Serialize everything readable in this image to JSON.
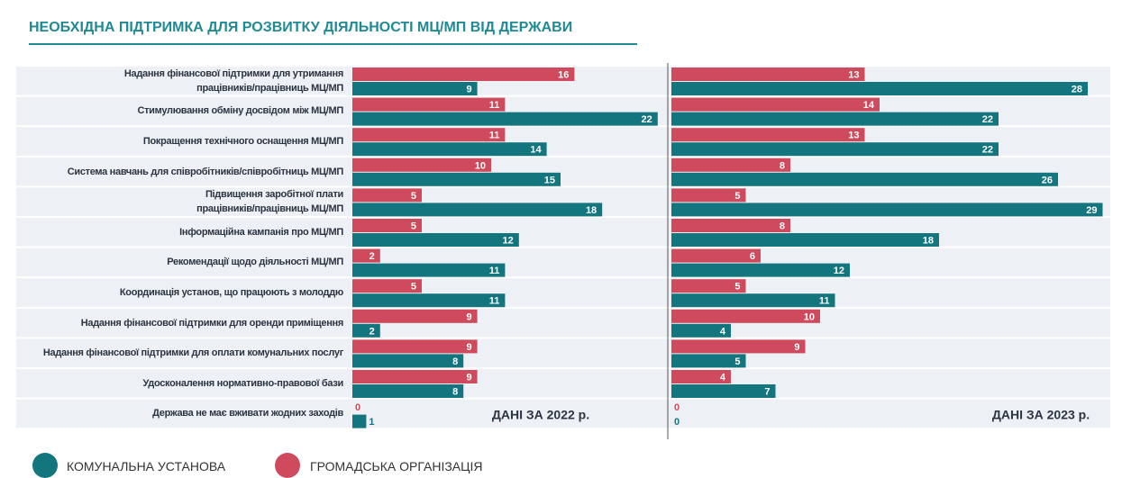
{
  "title": "НЕОБХІДНА ПІДТРИМКА ДЛЯ РОЗВИТКУ ДІЯЛЬНОСТІ МЦ/МП ВІД ДЕРЖАВИ",
  "chart_data": [
    {
      "type": "bar",
      "title": "ДАНІ ЗА 2022 р.",
      "categories": [
        "Надання фінансової підтримки для утримання\nпрацівників/працівниць МЦ/МП",
        "Стимулювання обміну досвідом між МЦ/МП",
        "Покращення технічного оснащення МЦ/МП",
        "Система навчань для співробітників/співробітниць МЦ/МП",
        "Підвищення заробітної плати\nпрацівників/працівниць МЦ/МП",
        "Інформаційна кампанія про МЦ/МП",
        "Рекомендації щодо діяльності МЦ/МП",
        "Координація установ, що працюють з молоддю",
        "Надання фінансової підтримки для оренди приміщення",
        "Надання фінансової підтримки для оплати комунальних послуг",
        "Удосконалення нормативно-правової бази",
        "Держава не має вживати жодних заходів"
      ],
      "series": [
        {
          "name": "ГРОМАДСЬКА ОРГАНІЗАЦІЯ",
          "color": "#cf4a5c",
          "values": [
            16,
            11,
            11,
            10,
            5,
            5,
            2,
            5,
            9,
            9,
            9,
            0
          ]
        },
        {
          "name": "КОМУНАЛЬНА УСТАНОВА",
          "color": "#13767e",
          "values": [
            9,
            22,
            14,
            15,
            18,
            12,
            11,
            11,
            2,
            8,
            8,
            1
          ]
        }
      ],
      "xlim": [
        0,
        30
      ]
    },
    {
      "type": "bar",
      "title": "ДАНІ ЗА 2023 р.",
      "series": [
        {
          "color": "#cf4a5c",
          "values": [
            13,
            14,
            13,
            8,
            5,
            8,
            6,
            5,
            10,
            9,
            4,
            0
          ]
        },
        {
          "color": "#13767e",
          "values": [
            28,
            22,
            22,
            26,
            29,
            18,
            12,
            11,
            4,
            5,
            7,
            0
          ]
        }
      ],
      "xlim": [
        0,
        30
      ]
    }
  ]
}
